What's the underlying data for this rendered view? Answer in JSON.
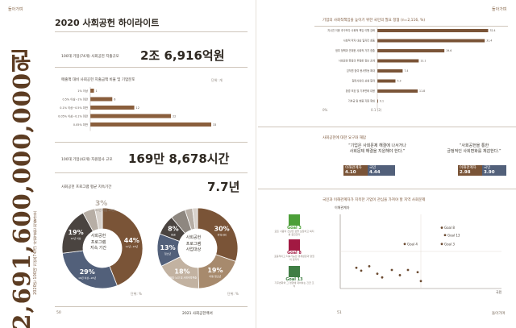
{
  "left": {
    "tag": "돌아가며",
    "vertical_number": "2,691,600,000,000원",
    "vertical_caption": "2020년 100대 기업(74개) 사회공헌 지출규모",
    "title": "2020 사회공헌 하이라이트",
    "spend": {
      "label": "100대 기업(74개) 사회공헌 지출규모",
      "value": "2조 6,916억원"
    },
    "sales_chart": {
      "title": "매출액 대비 사회공헌 지출금액 비율 및 기업분포",
      "unit": "단위: 개"
    },
    "hours": {
      "label": "100대 기업(42개) 자원봉사 규모",
      "value": "169만 8,678시간"
    },
    "program": {
      "label": "사회공헌 프로그램 평균 지속기간",
      "value": "7.7년"
    },
    "donut1": {
      "center": [
        "사회공헌",
        "프로그램",
        "지속 기간"
      ],
      "unit": "단위: %",
      "callout_pct": "3%",
      "callout_text": "21년 이상 20년"
    },
    "donut2": {
      "center": [
        "사회공헌",
        "프로그램",
        "사업대상"
      ],
      "unit": "단위: %"
    },
    "page_no": "50",
    "book_title": "2021 사회공헌백서"
  },
  "right": {
    "tag": "돌아가며",
    "survey_title": "기업의 사회적책임을 높이기 위한 국민의 필요 정협 (n=2,116, %)",
    "survey_axis": [
      "0.1 (2)",
      "0%"
    ],
    "demand_title": "사회공헌에 대한 요구와 해답",
    "quote1": [
      "“기업은 사회문제 해결에 나서거나",
      "사회문제 해결을 지원해야 한다.”"
    ],
    "quote2": [
      "“사회공헌을 통한",
      "긍정적인 사회변화를 체감한다.”"
    ],
    "pair1": {
      "l_lbl": "이해관계자",
      "l_val": "4.10",
      "r_lbl": "국민",
      "r_val": "4.44"
    },
    "pair2": {
      "l_lbl": "이해관계자",
      "l_val": "2.98",
      "r_lbl": "국민",
      "r_val": "3.90"
    },
    "sdg_title": "국민과 이해관계자가 지목한 기업이 관심을 가져야 할 지역 사회문제",
    "goals": [
      {
        "name": "Goal 3",
        "desc": "모든 사람의 건강한 삶을 보장하고 복지를 증진한다"
      },
      {
        "name": "Goal 8",
        "desc": "포용적이고 지속가능한 경제성장과 양질의 일자리"
      },
      {
        "name": "Goal 13",
        "desc": "기후변화와 그 영향에 대처하는 긴급 조치"
      }
    ],
    "scatter_ylabel": "이해관계자",
    "scatter_xlabel": "국민",
    "page_no": "51",
    "tag_bottom": "돌아가며"
  },
  "chart_data": [
    {
      "type": "bar",
      "title": "매출액 대비 사회공헌 지출금액 비율 및 기업분포",
      "categories": [
        "1% 이상",
        "0.5% 이상~1% 미만",
        "0.1% 이상~0.5% 미만",
        "0.05% 이상~0.1% 미만",
        "0.05% 미만"
      ],
      "values": [
        1,
        6,
        12,
        22,
        33
      ],
      "ylabel": "단위: 개",
      "xlim": [
        0,
        33
      ]
    },
    {
      "type": "pie",
      "title": "사회공헌 프로그램 지속 기간",
      "slices": [
        {
          "label": "11년~15년",
          "value": 44,
          "color": "#7a5437"
        },
        {
          "label": "16년 이상~20년",
          "value": 29,
          "color": "#52607a"
        },
        {
          "label": "10년 이상",
          "value": 19,
          "color": "#4a4440"
        },
        {
          "label": "21년 이상",
          "value": 5,
          "color": "#b7aea5"
        },
        {
          "label": "기타",
          "value": 3,
          "color": "#d8d2cc"
        }
      ]
    },
    {
      "type": "pie",
      "title": "사회공헌 프로그램 사업대상",
      "slices": [
        {
          "label": "지역사회",
          "value": 30,
          "color": "#7a5437"
        },
        {
          "label": "아동·청소년",
          "value": 19,
          "color": "#a78a6d"
        },
        {
          "label": "장애인·노인 및 사회취약계층",
          "value": 18,
          "color": "#c2b2a1"
        },
        {
          "label": "청소년",
          "value": 13,
          "color": "#52607a"
        },
        {
          "label": "환경",
          "value": 8,
          "color": "#4a4440"
        },
        {
          "label": "기타",
          "value": 6,
          "color": "#8e8780"
        },
        {
          "label": "다문화",
          "value": 3,
          "color": "#b7aea5"
        },
        {
          "label": "기타 대상",
          "value": 2,
          "color": "#d8d2cc"
        }
      ]
    },
    {
      "type": "bar",
      "title": "기업의 사회적책임을 높이기 위한 국민의 필요 정협 (n=2,116, %)",
      "categories": [
        "지나친 이윤 추구보다 사회적 책임 이행 강화",
        "사회적 약자 대상 일자리 창출",
        "정부 정책과 연계한 사회적 가치 창출",
        "사회공헌 활동의 투명한 정보 공개",
        "임직원 참여 봉사활동 확대",
        "협력사와의 상생 협력",
        "환경 보호 및 기후변화 대응",
        "기부금 및 현물 지원 확대"
      ],
      "values": [
        32.4,
        31.4,
        19.6,
        12.1,
        7.4,
        5.3,
        11.8,
        0.1
      ],
      "xlim": [
        0,
        33
      ]
    },
    {
      "type": "scatter",
      "title": "국민과 이해관계자가 지목한 기업이 관심을 가져야 할 지역 사회문제",
      "xlabel": "국민",
      "ylabel": "이해관계자",
      "points": [
        {
          "label": "Goal 8",
          "x": 0.63,
          "y": 0.82
        },
        {
          "label": "Goal 13",
          "x": 0.65,
          "y": 0.72
        },
        {
          "label": "Goal 4",
          "x": 0.4,
          "y": 0.6
        },
        {
          "label": "Goal 3",
          "x": 0.63,
          "y": 0.6
        },
        {
          "label": "",
          "x": 0.1,
          "y": 0.28
        },
        {
          "label": "",
          "x": 0.13,
          "y": 0.24
        },
        {
          "label": "",
          "x": 0.18,
          "y": 0.3
        },
        {
          "label": "",
          "x": 0.23,
          "y": 0.2
        },
        {
          "label": "",
          "x": 0.26,
          "y": 0.15
        },
        {
          "label": "",
          "x": 0.32,
          "y": 0.25
        },
        {
          "label": "",
          "x": 0.37,
          "y": 0.18
        },
        {
          "label": "",
          "x": 0.42,
          "y": 0.25
        },
        {
          "label": "",
          "x": 0.48,
          "y": 0.22
        },
        {
          "label": "",
          "x": 0.5,
          "y": 0.1
        }
      ],
      "xlim": [
        0,
        1
      ],
      "ylim": [
        0,
        1
      ]
    }
  ]
}
